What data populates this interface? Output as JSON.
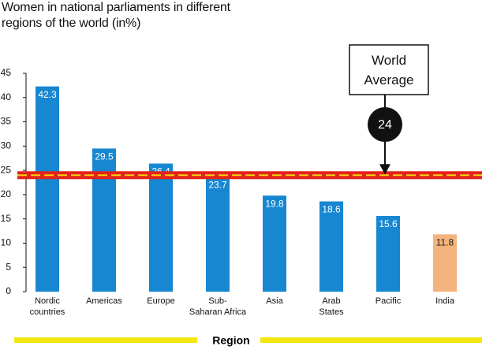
{
  "chart_data": {
    "type": "bar",
    "title": "Women in  national parliaments in different",
    "subtitle": "regions of the world (in%)",
    "x_label": "Region",
    "categories": [
      "Nordic\ncountries",
      "Americas",
      "Europe",
      "Sub-\nSaharan Africa",
      "Asia",
      "Arab\nStates",
      "Pacific",
      "India"
    ],
    "values": [
      42.3,
      29.5,
      26.4,
      23.7,
      19.8,
      18.6,
      15.6,
      11.8
    ],
    "colors": [
      "#1787d2",
      "#1787d2",
      "#1787d2",
      "#1787d2",
      "#1787d2",
      "#1787d2",
      "#1787d2",
      "#f3b37c"
    ],
    "label_colors": [
      "#ffffff",
      "#ffffff",
      "#ffffff",
      "#ffffff",
      "#ffffff",
      "#ffffff",
      "#ffffff",
      "#222222"
    ],
    "ylim": [
      0,
      45
    ],
    "yticks": [
      0,
      5,
      10,
      15,
      20,
      25,
      30,
      35,
      40,
      45
    ],
    "reference_line": {
      "label": "World Average",
      "value": 24
    }
  }
}
